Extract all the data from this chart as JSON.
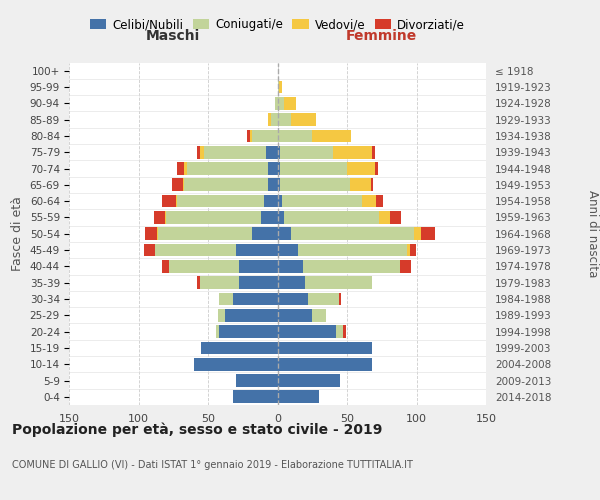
{
  "age_groups": [
    "0-4",
    "5-9",
    "10-14",
    "15-19",
    "20-24",
    "25-29",
    "30-34",
    "35-39",
    "40-44",
    "45-49",
    "50-54",
    "55-59",
    "60-64",
    "65-69",
    "70-74",
    "75-79",
    "80-84",
    "85-89",
    "90-94",
    "95-99",
    "100+"
  ],
  "birth_years": [
    "2014-2018",
    "2009-2013",
    "2004-2008",
    "1999-2003",
    "1994-1998",
    "1989-1993",
    "1984-1988",
    "1979-1983",
    "1974-1978",
    "1969-1973",
    "1964-1968",
    "1959-1963",
    "1954-1958",
    "1949-1953",
    "1944-1948",
    "1939-1943",
    "1934-1938",
    "1929-1933",
    "1924-1928",
    "1919-1923",
    "≤ 1918"
  ],
  "males_celibi": [
    32,
    30,
    60,
    55,
    42,
    38,
    32,
    28,
    28,
    30,
    18,
    12,
    10,
    7,
    7,
    8,
    0,
    0,
    0,
    0,
    0
  ],
  "males_coniugati": [
    0,
    0,
    0,
    0,
    2,
    5,
    10,
    28,
    50,
    58,
    68,
    68,
    62,
    60,
    58,
    45,
    18,
    5,
    2,
    0,
    0
  ],
  "males_vedovi": [
    0,
    0,
    0,
    0,
    0,
    0,
    0,
    0,
    0,
    0,
    1,
    1,
    1,
    1,
    2,
    3,
    2,
    2,
    0,
    0,
    0
  ],
  "males_divorziati": [
    0,
    0,
    0,
    0,
    0,
    0,
    0,
    2,
    5,
    8,
    8,
    8,
    10,
    8,
    5,
    2,
    2,
    0,
    0,
    0,
    0
  ],
  "females_nubili": [
    30,
    45,
    68,
    68,
    42,
    25,
    22,
    20,
    18,
    15,
    10,
    5,
    3,
    2,
    2,
    2,
    0,
    0,
    0,
    0,
    0
  ],
  "females_coniugate": [
    0,
    0,
    0,
    0,
    5,
    10,
    22,
    48,
    70,
    78,
    88,
    68,
    58,
    50,
    48,
    38,
    25,
    10,
    5,
    1,
    0
  ],
  "females_vedove": [
    0,
    0,
    0,
    0,
    0,
    0,
    0,
    0,
    0,
    2,
    5,
    8,
    10,
    15,
    20,
    28,
    28,
    18,
    8,
    2,
    0
  ],
  "females_divorziate": [
    0,
    0,
    0,
    0,
    2,
    0,
    2,
    0,
    8,
    5,
    10,
    8,
    5,
    2,
    2,
    2,
    0,
    0,
    0,
    0,
    0
  ],
  "color_celibi": "#4472a8",
  "color_coniugati": "#c2d49a",
  "color_vedovi": "#f5c842",
  "color_divorziati": "#d63b2a",
  "title": "Popolazione per età, sesso e stato civile - 2019",
  "subtitle": "COMUNE DI GALLIO (VI) - Dati ISTAT 1° gennaio 2019 - Elaborazione TUTTITALIA.IT",
  "label_maschi": "Maschi",
  "label_femmine": "Femmine",
  "label_fasce": "Fasce di età",
  "label_anni": "Anni di nascita",
  "legend_celibi": "Celibi/Nubili",
  "legend_coniugati": "Coniugati/e",
  "legend_vedovi": "Vedovi/e",
  "legend_divorziati": "Divorziati/e",
  "xlim": 150,
  "bg_color": "#efefef",
  "plot_bg": "#ffffff"
}
